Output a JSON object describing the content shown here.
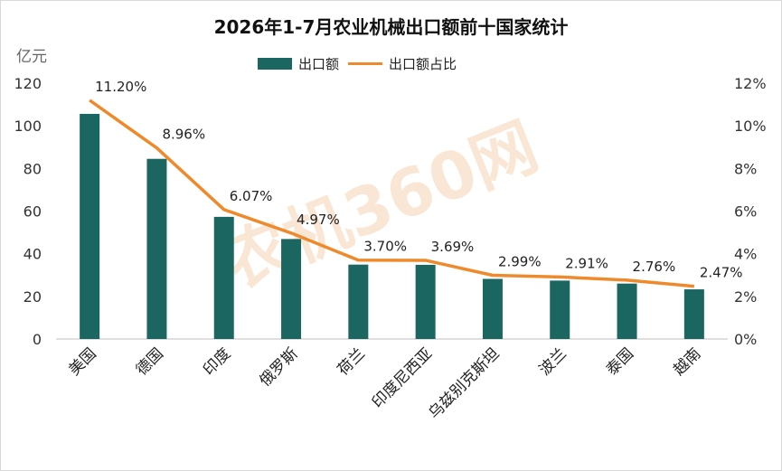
{
  "chart_data": {
    "type": "bar",
    "title": "2026年1-7月农业机械出口额前十国家统计",
    "ylabel": "亿元",
    "ylim": [
      0,
      120
    ],
    "y_ticks": [
      "0",
      "20",
      "40",
      "60",
      "80",
      "100",
      "120"
    ],
    "y2lim": [
      0,
      12
    ],
    "y2_ticks": [
      "0%",
      "2%",
      "4%",
      "6%",
      "8%",
      "10%",
      "12%"
    ],
    "categories": [
      "美国",
      "德国",
      "印度",
      "俄罗斯",
      "荷兰",
      "印度尼西亚",
      "乌兹别克斯坦",
      "波兰",
      "泰国",
      "越南"
    ],
    "series": [
      {
        "name": "出口额",
        "type": "bar",
        "color": "#1b6660",
        "axis": "left",
        "values": [
          105.6,
          84.5,
          57.3,
          46.9,
          34.9,
          34.8,
          28.2,
          27.4,
          26.0,
          23.3
        ]
      },
      {
        "name": "出口额占比",
        "type": "line",
        "color": "#ef8a2c",
        "axis": "right",
        "values": [
          11.2,
          8.96,
          6.07,
          4.97,
          3.7,
          3.69,
          2.99,
          2.91,
          2.76,
          2.47
        ],
        "labels": [
          "11.20%",
          "8.96%",
          "6.07%",
          "4.97%",
          "3.70%",
          "3.69%",
          "2.99%",
          "2.91%",
          "2.76%",
          "2.47%"
        ]
      }
    ],
    "legend": "top-center",
    "grid": false
  },
  "watermark": "农机360网"
}
